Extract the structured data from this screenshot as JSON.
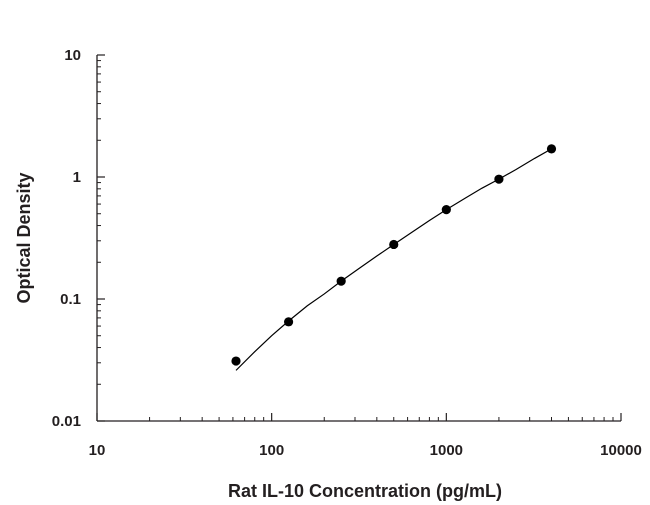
{
  "chart_data": {
    "type": "scatter",
    "title": "",
    "xlabel": "Rat IL-10 Concentration (pg/mL)",
    "ylabel": "Optical Density",
    "x_scale": "log",
    "y_scale": "log",
    "xlim": [
      10,
      10000
    ],
    "ylim": [
      0.01,
      10
    ],
    "x_ticks": [
      "10",
      "100",
      "1000",
      "10000"
    ],
    "y_ticks": [
      "0.01",
      "0.1",
      "1",
      "10"
    ],
    "grid": false,
    "legend": "none",
    "colors": {
      "marker": "#000000",
      "line": "#000000",
      "axis": "#231f20"
    },
    "series": [
      {
        "x": [
          62.5,
          125,
          250,
          500,
          1000,
          2000,
          4000
        ],
        "y": [
          0.031,
          0.065,
          0.14,
          0.28,
          0.54,
          0.96,
          1.7
        ]
      }
    ],
    "fit_curve": {
      "x": [
        62.5,
        80,
        100,
        125,
        160,
        200,
        250,
        320,
        400,
        500,
        640,
        800,
        1000,
        1280,
        1600,
        2000,
        2500,
        3200,
        4000
      ],
      "y": [
        0.026,
        0.037,
        0.05,
        0.066,
        0.088,
        0.11,
        0.14,
        0.18,
        0.225,
        0.28,
        0.355,
        0.44,
        0.54,
        0.67,
        0.81,
        0.96,
        1.15,
        1.42,
        1.7
      ]
    }
  }
}
